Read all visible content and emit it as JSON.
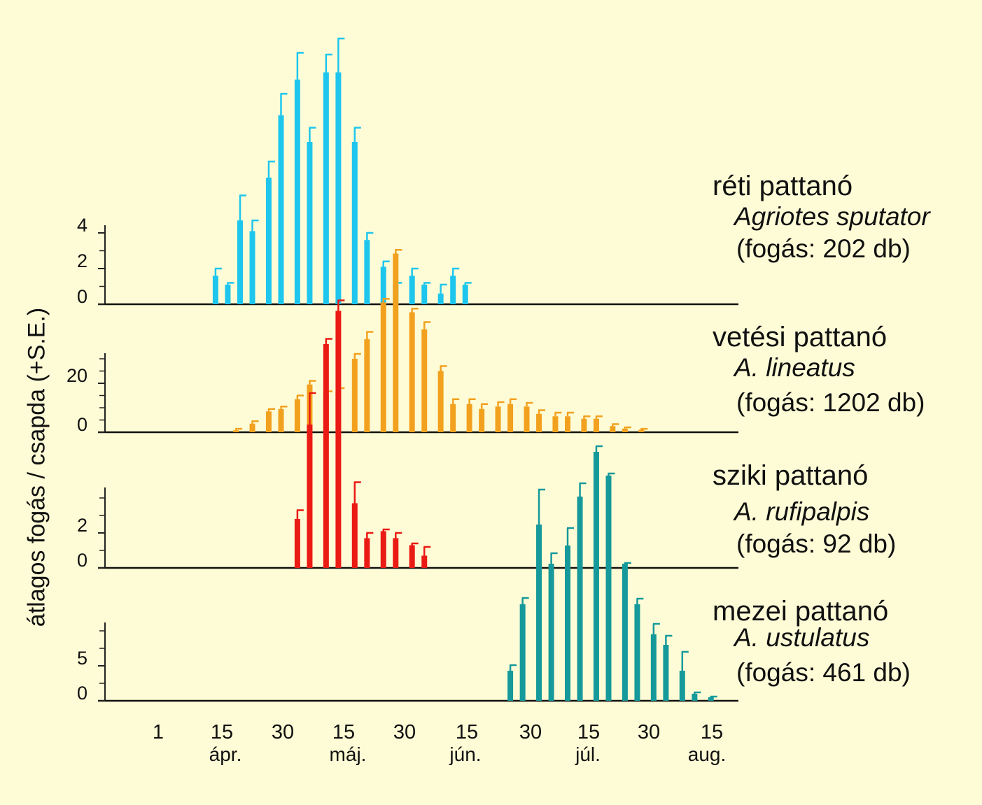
{
  "chart_data": {
    "type": "bar",
    "ylabel": "átlagos fogás / csapda (+S.E.)",
    "x_tick_labels": [
      "1",
      "15",
      "30",
      "15",
      "30",
      "15",
      "30",
      "15",
      "30",
      "15"
    ],
    "month_labels": [
      "ápr.",
      "máj.",
      "jún.",
      "júl.",
      "aug."
    ],
    "panels": [
      {
        "common_name": "réti pattanó",
        "latin_name": "Agriotes sputator",
        "catch": "(fogás: 202 db)",
        "color": "#1ec6ee",
        "y_ticks": [
          0,
          2,
          4
        ],
        "y_tick_labels": [
          "0",
          "2",
          "4"
        ],
        "x": [
          15,
          18,
          21,
          24,
          28,
          31,
          35,
          38,
          42,
          45,
          49,
          52,
          56,
          59,
          63,
          66,
          70,
          73,
          76
        ],
        "values": [
          1.6,
          1.1,
          4.7,
          4.1,
          7.1,
          10.6,
          12.6,
          9.1,
          13.0,
          13.0,
          9.1,
          3.6,
          2.1,
          1.1,
          1.6,
          1.1,
          0.6,
          1.6,
          1.1
        ],
        "errors": [
          0.4,
          0.1,
          1.4,
          0.6,
          0.9,
          1.2,
          1.5,
          0.8,
          1.0,
          1.9,
          0.8,
          0.4,
          0.3,
          0.1,
          0.4,
          0.1,
          0.5,
          0.4,
          0.1
        ]
      },
      {
        "common_name": "vetési pattanó",
        "latin_name": "A. lineatus",
        "catch": "(fogás: 1202 db)",
        "color": "#f2a11f",
        "y_ticks": [
          0,
          20
        ],
        "y_tick_labels": [
          "0",
          "20"
        ],
        "x": [
          20,
          24,
          28,
          31,
          35,
          38,
          42,
          45,
          49,
          52,
          56,
          59,
          63,
          66,
          70,
          73,
          77,
          80,
          84,
          87,
          91,
          94,
          98,
          101,
          105,
          108,
          112,
          115,
          119
        ],
        "values": [
          0.8,
          3.5,
          8.5,
          9.5,
          13.5,
          19.5,
          15.5,
          16.5,
          30,
          38,
          53,
          73,
          49,
          42,
          25,
          11.5,
          11.5,
          9.5,
          10.5,
          11.5,
          10.5,
          7.5,
          6.5,
          6.5,
          5.5,
          5.5,
          2.5,
          1.5,
          1.0
        ],
        "errors": [
          0.6,
          1.0,
          1.0,
          1.0,
          1.5,
          1.5,
          1.2,
          1.5,
          2.0,
          3.0,
          1.5,
          1.5,
          1.5,
          3.0,
          2.0,
          2.0,
          2.0,
          2.0,
          1.8,
          2.0,
          1.5,
          1.5,
          1.5,
          1.5,
          1.0,
          1.0,
          0.8,
          0.5,
          0.4
        ]
      },
      {
        "common_name": "sziki pattanó",
        "latin_name": "A. rufipalpis",
        "catch": "(fogás: 92 db)",
        "color": "#ea1a14",
        "y_ticks": [
          0,
          2
        ],
        "y_tick_labels": [
          "0",
          "2"
        ],
        "x": [
          35,
          38,
          42,
          45,
          49,
          52,
          56,
          59,
          63,
          66
        ],
        "values": [
          2.8,
          8.2,
          12.8,
          14.7,
          3.7,
          1.7,
          2.1,
          1.7,
          1.3,
          0.7
        ],
        "errors": [
          0.5,
          1.8,
          0.3,
          0.6,
          1.2,
          0.3,
          0.1,
          0.3,
          0.1,
          0.5
        ]
      },
      {
        "common_name": "mezei pattanó",
        "latin_name": "A. ustulatus",
        "catch": "(fogás: 461 db)",
        "color": "#15999b",
        "y_ticks": [
          0,
          5
        ],
        "y_tick_labels": [
          "0",
          "5"
        ],
        "x": [
          87,
          90,
          94,
          97,
          101,
          104,
          108,
          111,
          115,
          118,
          122,
          125,
          129,
          132,
          136
        ],
        "values": [
          4.3,
          13.8,
          25.2,
          19.6,
          22.2,
          29.2,
          35.6,
          32.2,
          19.6,
          13.8,
          9.5,
          8.0,
          4.3,
          1.0,
          0.5
        ],
        "errors": [
          0.8,
          0.9,
          5.0,
          1.5,
          2.5,
          1.9,
          0.8,
          0.3,
          0.1,
          0.8,
          1.5,
          1.3,
          2.7,
          0.2,
          0.1
        ]
      }
    ]
  }
}
